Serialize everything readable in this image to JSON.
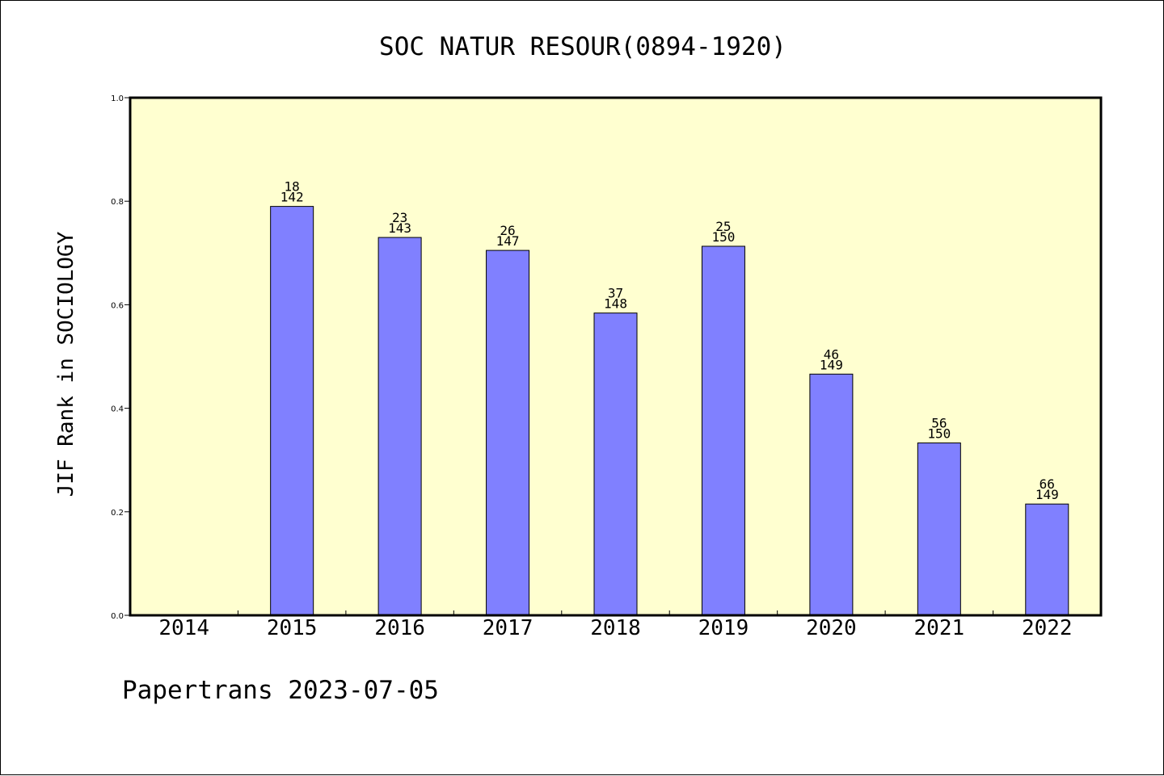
{
  "chart_data": {
    "type": "bar",
    "title": "SOC NATUR RESOUR(0894-1920)",
    "xlabel": "",
    "ylabel": "JIF Rank in SOCIOLOGY",
    "categories": [
      "2014",
      "2015",
      "2016",
      "2017",
      "2018",
      "2019",
      "2020",
      "2021",
      "2022"
    ],
    "values": [
      null,
      0.79,
      0.73,
      0.705,
      0.584,
      0.713,
      0.466,
      0.333,
      0.215
    ],
    "rank_labels": [
      "",
      "18",
      "23",
      "26",
      "37",
      "25",
      "46",
      "56",
      "66"
    ],
    "total_labels": [
      "",
      "142",
      "143",
      "147",
      "148",
      "150",
      "149",
      "150",
      "149"
    ],
    "ylim": [
      0,
      1.0
    ],
    "yticks": [
      "0.0",
      "0.2",
      "0.4",
      "0.6",
      "0.8",
      "1.0"
    ],
    "grid": false,
    "colors": {
      "plot_background": "#ffffd0",
      "bar_fill": "#8080ff",
      "axis": "#000000"
    }
  },
  "footer": "Papertrans 2023-07-05"
}
